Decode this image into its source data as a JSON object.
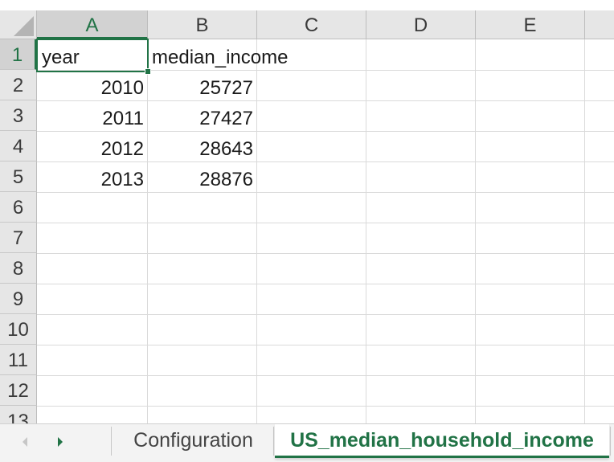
{
  "columns": [
    "A",
    "B",
    "C",
    "D",
    "E"
  ],
  "rows": [
    "1",
    "2",
    "3",
    "4",
    "5",
    "6",
    "7",
    "8",
    "9",
    "10",
    "11",
    "12",
    "13"
  ],
  "cells": {
    "A1": "year",
    "B1": "median_income",
    "A2": "2010",
    "B2": "25727",
    "A3": "2011",
    "B3": "27427",
    "A4": "2012",
    "B4": "28643",
    "A5": "2013",
    "B5": "28876"
  },
  "active_cell": "A1",
  "sheet_tabs": [
    {
      "label": "Configuration",
      "active": false
    },
    {
      "label": "US_median_household_income",
      "active": true
    }
  ],
  "colors": {
    "accent": "#217346"
  }
}
